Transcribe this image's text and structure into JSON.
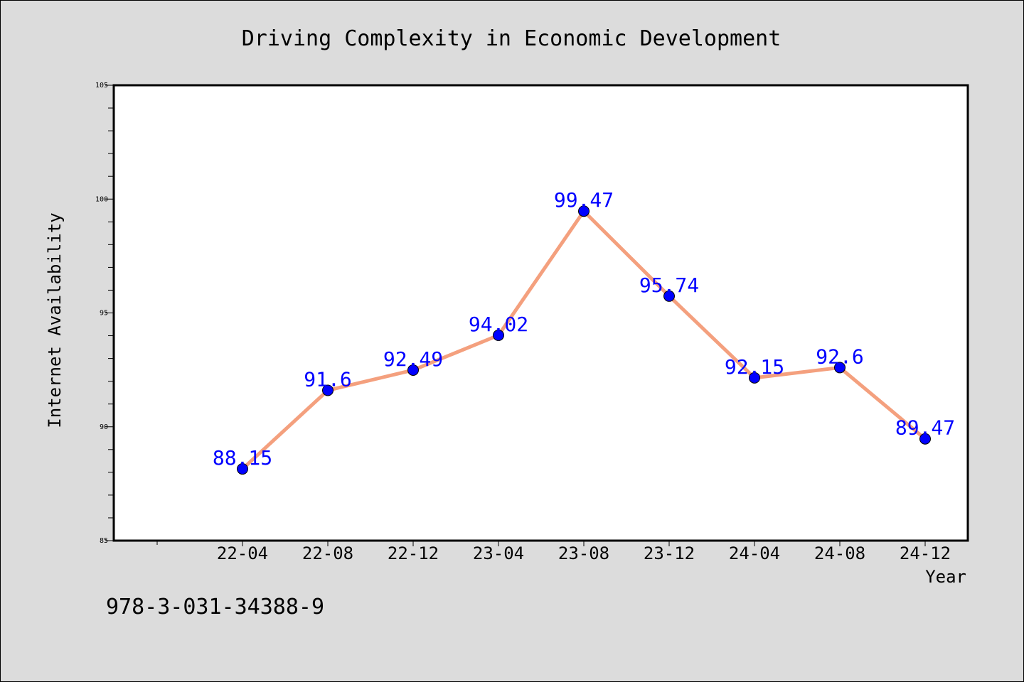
{
  "chart_data": {
    "type": "line",
    "title": "Driving Complexity in Economic Development",
    "xlabel": "Year",
    "ylabel": "Internet Availability",
    "categories": [
      "22-04",
      "22-08",
      "22-12",
      "23-04",
      "23-08",
      "23-12",
      "24-04",
      "24-08",
      "24-12"
    ],
    "values": [
      88.15,
      91.6,
      92.49,
      94.02,
      99.47,
      95.74,
      92.15,
      92.6,
      89.47
    ],
    "data_labels": [
      "88.15",
      "91.6",
      "92.49",
      "94.02",
      "99.47",
      "95.74",
      "92.15",
      "92.6",
      "89.47"
    ],
    "ylim": [
      85,
      105
    ],
    "y_ticks": [
      85,
      90,
      95,
      100,
      105
    ],
    "y_tick_labels": [
      "85",
      "90",
      "95",
      "100",
      "105"
    ],
    "grid": false,
    "legend": "none",
    "line_color": "#f4a07e",
    "marker_color": "#0000ff",
    "label_color": "#0000ff"
  },
  "annotation": "978-3-031-34388-9"
}
